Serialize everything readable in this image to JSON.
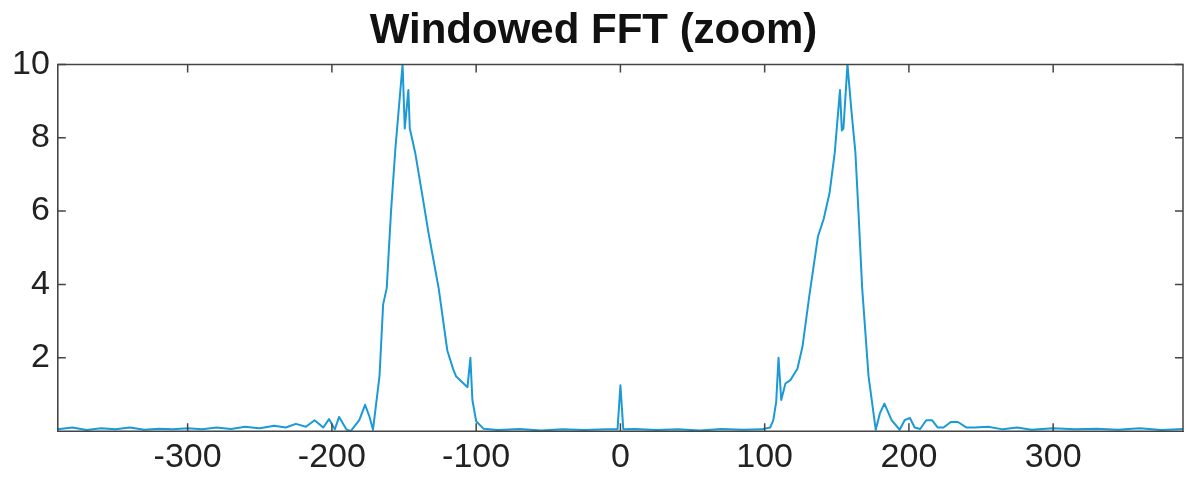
{
  "chart_data": {
    "type": "line",
    "title": "Windowed FFT (zoom)",
    "x": [
      -390,
      -380,
      -370,
      -360,
      -350,
      -340,
      -330,
      -320,
      -310,
      -300,
      -290,
      -280,
      -270,
      -260,
      -250,
      -240,
      -232,
      -225,
      -218,
      -212,
      -206,
      -202,
      -198,
      -195,
      -190,
      -187,
      -181,
      -177,
      -174,
      -171.5,
      -167,
      -164.5,
      -162,
      -159,
      -156,
      -151,
      -149.5,
      -147,
      -146,
      -142.3,
      -137.6,
      -133,
      -126,
      -120,
      -116,
      -114,
      -106,
      -104,
      -102.6,
      -100,
      -95,
      -85,
      -70,
      -55,
      -40,
      -25,
      -10,
      -2,
      0,
      2,
      10,
      25,
      40,
      55,
      70,
      85,
      98,
      103.8,
      106,
      108,
      109.6,
      111.5,
      114.4,
      118,
      122.7,
      126.2,
      131,
      136.9,
      141,
      145,
      148.6,
      152.2,
      153.5,
      154.6,
      157.4,
      160,
      162.9,
      165,
      167.6,
      172,
      177,
      180,
      183,
      188,
      193.6,
      197,
      200.7,
      204,
      207.8,
      212,
      216,
      220,
      224,
      229,
      234,
      240,
      245.6,
      255,
      265,
      275,
      285,
      300,
      315,
      330,
      345,
      360,
      375,
      390
    ],
    "series": [
      {
        "color": "#1b9ad6",
        "values": [
          0.05,
          0.1,
          0.03,
          0.08,
          0.05,
          0.1,
          0.04,
          0.07,
          0.05,
          0.08,
          0.05,
          0.1,
          0.06,
          0.12,
          0.08,
          0.15,
          0.1,
          0.2,
          0.12,
          0.3,
          0.1,
          0.33,
          0.05,
          0.39,
          0.05,
          0.0,
          0.3,
          0.72,
          0.4,
          0.04,
          1.5,
          3.45,
          3.9,
          6.0,
          7.7,
          10.0,
          8.25,
          9.3,
          8.25,
          7.6,
          6.5,
          5.4,
          3.9,
          2.2,
          1.7,
          1.5,
          1.2,
          2.0,
          0.85,
          0.27,
          0.07,
          0.03,
          0.06,
          0.02,
          0.05,
          0.03,
          0.05,
          0.05,
          1.25,
          0.05,
          0.06,
          0.03,
          0.05,
          0.02,
          0.06,
          0.04,
          0.05,
          0.1,
          0.3,
          0.8,
          2.0,
          0.85,
          1.3,
          1.4,
          1.7,
          2.3,
          3.7,
          5.3,
          5.8,
          6.5,
          7.6,
          9.3,
          8.2,
          8.25,
          10.0,
          8.8,
          7.6,
          6.0,
          3.9,
          1.5,
          0.04,
          0.5,
          0.75,
          0.3,
          0.04,
          0.3,
          0.36,
          0.1,
          0.06,
          0.3,
          0.3,
          0.1,
          0.1,
          0.25,
          0.25,
          0.1,
          0.1,
          0.12,
          0.05,
          0.1,
          0.04,
          0.08,
          0.05,
          0.07,
          0.04,
          0.08,
          0.03,
          0.06
        ]
      }
    ],
    "xlim": [
      -390,
      390
    ],
    "xticks": [
      -300,
      -200,
      -100,
      0,
      100,
      200,
      300
    ],
    "ylim": [
      0,
      10
    ],
    "yticks": [
      2,
      4,
      6,
      8,
      10
    ],
    "marker": "none",
    "line_style": "solid",
    "grid": false,
    "legend": false
  }
}
